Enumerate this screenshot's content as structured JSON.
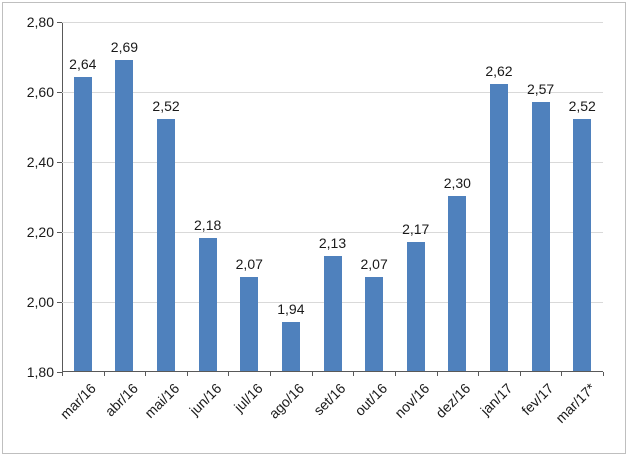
{
  "chart_data": {
    "type": "bar",
    "title": "",
    "xlabel": "",
    "ylabel": "",
    "categories": [
      "mar/16",
      "abr/16",
      "mai/16",
      "jun/16",
      "jul/16",
      "ago/16",
      "set/16",
      "out/16",
      "nov/16",
      "dez/16",
      "jan/17",
      "fev/17",
      "mar/17*"
    ],
    "values": [
      2.64,
      2.69,
      2.52,
      2.18,
      2.07,
      1.94,
      2.13,
      2.07,
      2.17,
      2.3,
      2.62,
      2.57,
      2.52
    ],
    "value_labels": [
      "2,64",
      "2,69",
      "2,52",
      "2,18",
      "2,07",
      "1,94",
      "2,13",
      "2,07",
      "2,17",
      "2,30",
      "2,62",
      "2,57",
      "2,52"
    ],
    "ylim": [
      1.8,
      2.8
    ],
    "y_tick_values": [
      2.8,
      2.6,
      2.4,
      2.2,
      2.0,
      1.8
    ],
    "y_tick_labels": [
      "2,80",
      "2,60",
      "2,40",
      "2,20",
      "2,00",
      "1,80"
    ],
    "grid": true,
    "legend_position": "none",
    "decimal_separator": ",",
    "colors": {
      "bar": "#4F81BD",
      "gridline": "#D9D9D9",
      "axis": "#595959",
      "text": "#1A1A1A",
      "frame_border": "#BFBFBF",
      "background": "#FFFFFF"
    }
  }
}
